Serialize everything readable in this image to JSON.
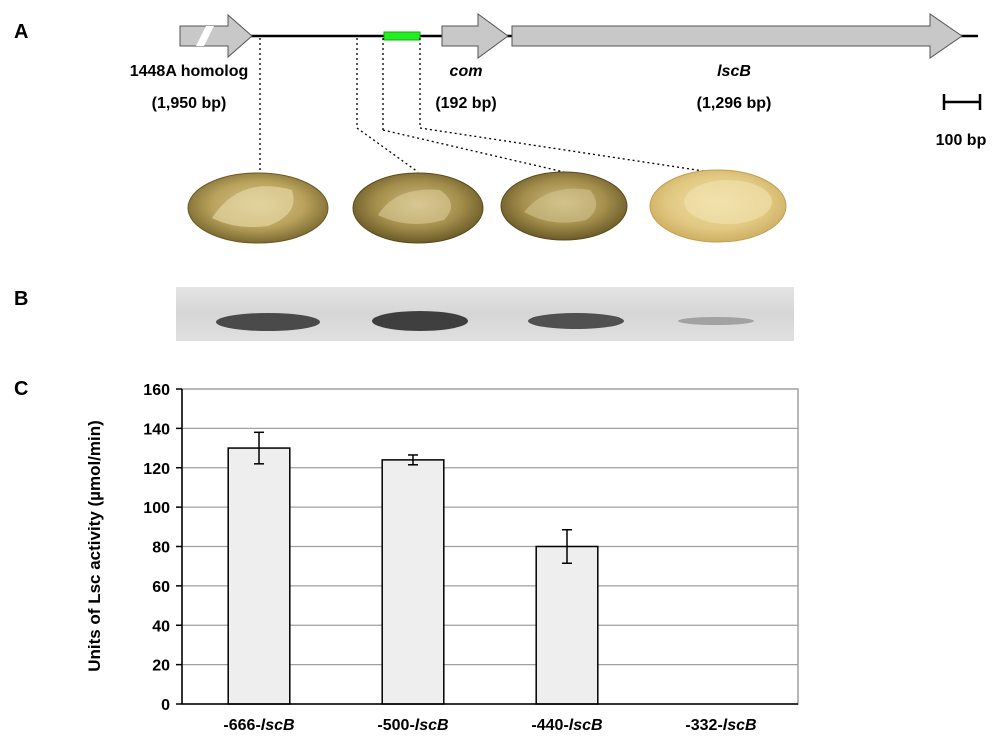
{
  "panels": {
    "a": "A",
    "b": "B",
    "c": "C"
  },
  "genes": [
    {
      "name": "1448A homolog",
      "italic": false,
      "size": "(1,950 bp)"
    },
    {
      "name": "com",
      "italic": true,
      "size": "(192 bp)"
    },
    {
      "name": "lscB",
      "italic": true,
      "size": "(1,296 bp)"
    }
  ],
  "scale_bar": {
    "label": "100 bp"
  },
  "colors": {
    "gene_fill": "#c8c8c8",
    "gene_stroke": "#555555",
    "promoter_box": "#22ee22",
    "bar_fill": "#eeeeee",
    "grid": "#a0a0a0",
    "colony_dark": "#8a7636",
    "colony_light": "#dcc98e"
  },
  "chart_data": {
    "type": "bar",
    "categories": [
      {
        "prefix": "-666-",
        "gene": "lscB"
      },
      {
        "prefix": "-500-",
        "gene": "lscB"
      },
      {
        "prefix": "-440-",
        "gene": "lscB"
      },
      {
        "prefix": "-332-",
        "gene": "lscB"
      }
    ],
    "values": [
      130,
      124,
      80,
      0
    ],
    "errors": [
      8,
      2.5,
      8.5,
      0
    ],
    "ylabel": "Units of Lsc activity (µmol/min)",
    "ylim": [
      0,
      160
    ],
    "yticks": [
      0,
      20,
      40,
      60,
      80,
      100,
      120,
      140,
      160
    ],
    "grid": true
  }
}
